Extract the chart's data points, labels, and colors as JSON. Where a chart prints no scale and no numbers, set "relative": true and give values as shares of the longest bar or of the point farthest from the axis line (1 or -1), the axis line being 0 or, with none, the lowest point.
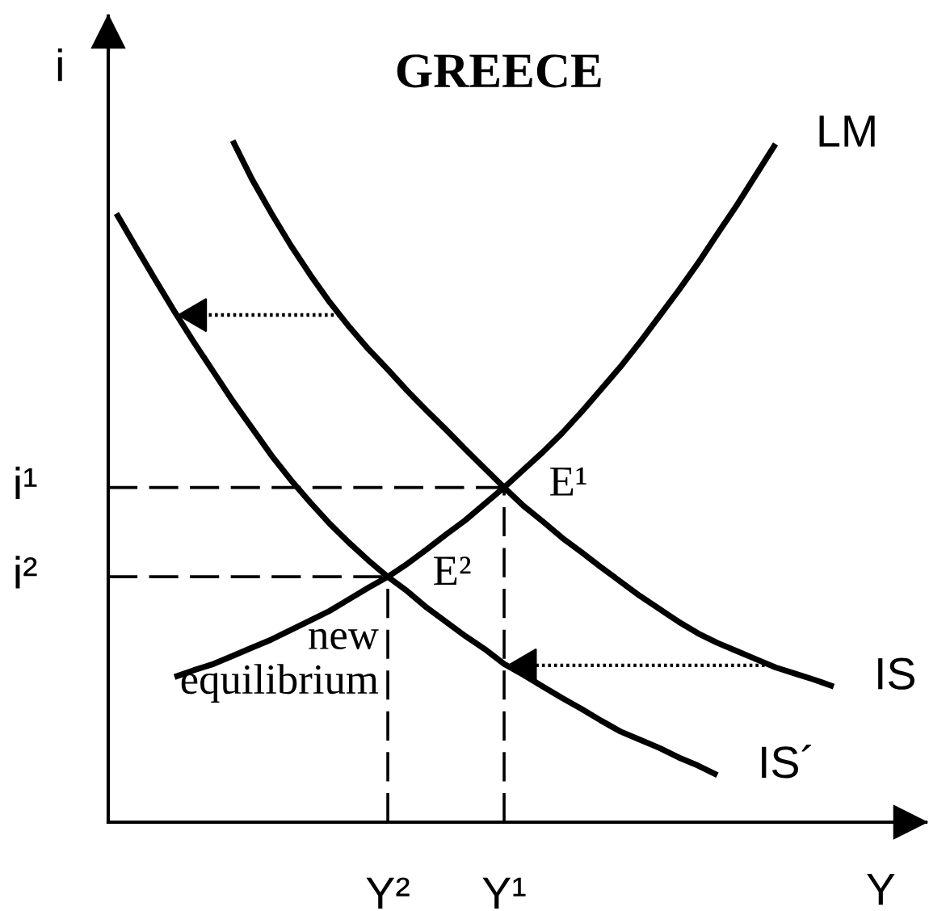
{
  "chart_data": {
    "type": "line",
    "title": "GREECE",
    "xlabel": "Y",
    "ylabel": "i",
    "relative": true,
    "categories": [
      null,
      null,
      null,
      null,
      null,
      null,
      null,
      null,
      null,
      null,
      null,
      null,
      null,
      null,
      "Y²",
      null,
      null,
      null,
      null,
      null,
      "Y¹",
      null,
      null,
      null,
      null,
      null,
      null,
      null,
      null,
      null,
      null,
      null,
      null,
      null,
      null,
      null,
      null,
      null
    ],
    "series": [
      {
        "name": "LM",
        "color": "#000000",
        "values": [
          null,
          null,
          null,
          0.213,
          0.223,
          0.232,
          0.244,
          0.256,
          0.268,
          0.282,
          0.296,
          0.31,
          0.327,
          0.344,
          0.36,
          0.379,
          0.4,
          0.422,
          0.443,
          0.467,
          0.491,
          0.517,
          0.543,
          0.571,
          0.602,
          0.635,
          0.668,
          0.704,
          0.742,
          0.78,
          0.82,
          0.863,
          0.905,
          0.95,
          0.995,
          null,
          null,
          null
        ]
      },
      {
        "name": "IS",
        "color": "#000000",
        "values": [
          null,
          null,
          null,
          null,
          null,
          null,
          1.0,
          0.943,
          0.893,
          0.846,
          0.803,
          0.763,
          0.727,
          0.694,
          0.664,
          0.633,
          0.604,
          0.576,
          0.547,
          0.519,
          0.491,
          0.464,
          0.441,
          0.417,
          0.396,
          0.374,
          0.353,
          0.332,
          0.313,
          0.294,
          0.277,
          0.263,
          0.251,
          0.239,
          0.227,
          0.218,
          0.209,
          0.199
        ]
      },
      {
        "name": "IS´",
        "color": "#000000",
        "values": [
          0.893,
          0.844,
          0.796,
          0.749,
          0.704,
          0.661,
          0.618,
          0.578,
          0.538,
          0.502,
          0.469,
          0.438,
          0.41,
          0.384,
          0.36,
          0.339,
          0.315,
          0.294,
          0.273,
          0.254,
          0.232,
          0.216,
          0.199,
          0.182,
          0.166,
          0.149,
          0.133,
          0.121,
          0.109,
          0.095,
          0.083,
          0.069,
          null,
          null,
          null,
          null,
          null,
          null
        ]
      }
    ],
    "ref_lines": [
      {
        "axis": "y",
        "value": 0.491,
        "label": "i¹",
        "color": "#000000",
        "line_style": "dashed"
      },
      {
        "axis": "x",
        "value": "Y¹",
        "color": "#000000",
        "line_style": "dashed"
      },
      {
        "axis": "y",
        "value": 0.36,
        "label": "i²",
        "color": "#000000",
        "line_style": "dashed"
      },
      {
        "axis": "x",
        "value": "Y²",
        "color": "#000000",
        "line_style": "dashed"
      }
    ],
    "annotations": [
      {
        "text": "E¹",
        "x": "Y¹",
        "y": 0.491
      },
      {
        "text": "E²",
        "x": "Y²",
        "y": 0.36
      },
      {
        "text": "new\nequilibrium",
        "x": "Y²",
        "y": 0.36
      }
    ]
  }
}
